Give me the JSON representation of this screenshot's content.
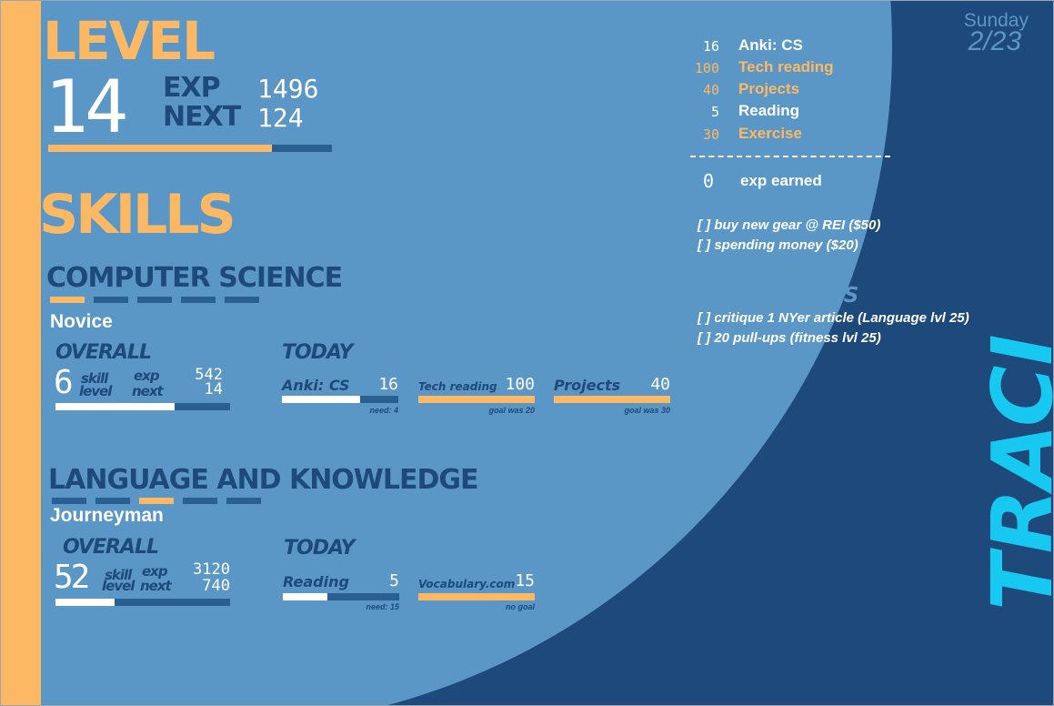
{
  "header": {
    "level_label": "LEVEL",
    "level_value": "14",
    "exp_label": "EXP",
    "exp_value": "1496",
    "next_label": "NEXT",
    "next_value": "124",
    "progress": 0.79
  },
  "skills": {
    "title": "SKILLS",
    "categories": [
      {
        "title": "COMPUTER SCIENCE",
        "rank": "Novice",
        "rank_step": 1,
        "overall_label": "OVERALL",
        "overall_value": "6",
        "skill_label": "skill",
        "level_label": "level",
        "exp_label": "exp",
        "next_label": "next",
        "exp_value": "542",
        "next_value": "14",
        "overall_progress": 0.68,
        "today_label": "TODAY",
        "items": [
          {
            "label": "Anki: CS",
            "value": "16",
            "note": "need: 4",
            "progress": 0.67,
            "fill": "white"
          },
          {
            "label": "Tech reading",
            "value": "100",
            "note": "goal was 20",
            "progress": 1.0,
            "fill": "orange"
          },
          {
            "label": "Projects",
            "value": "40",
            "note": "goal was 30",
            "progress": 1.0,
            "fill": "orange"
          }
        ]
      },
      {
        "title": "LANGUAGE AND KNOWLEDGE",
        "rank": "Journeyman",
        "rank_step": 3,
        "overall_label": "OVERALL",
        "overall_value": "52",
        "skill_label": "skill",
        "level_label": "level",
        "exp_label": "exp",
        "next_label": "next",
        "exp_value": "3120",
        "next_value": "740",
        "overall_progress": 0.34,
        "today_label": "TODAY",
        "items": [
          {
            "label": "Reading",
            "value": "5",
            "note": "need: 15",
            "progress": 0.38,
            "fill": "white"
          },
          {
            "label": "Vocabulary.com",
            "value": "15",
            "note": "no goal",
            "progress": 1.0,
            "fill": "orange"
          }
        ]
      }
    ]
  },
  "today_panel": {
    "title": "TODAY",
    "day": "Sunday",
    "date": "2/23",
    "rows": [
      {
        "value": "16",
        "label": "Anki: CS",
        "highlight": false
      },
      {
        "value": "100",
        "label": "Tech reading",
        "highlight": true
      },
      {
        "value": "40",
        "label": "Projects",
        "highlight": true
      },
      {
        "value": "5",
        "label": "Reading",
        "highlight": false
      },
      {
        "value": "30",
        "label": "Exercise",
        "highlight": true
      }
    ],
    "earned_value": "0",
    "earned_label": "exp earned"
  },
  "rewards": {
    "title": "REWARDS",
    "items": [
      "[ ]  buy new gear @ REI ($50)",
      "[ ]  spending money ($20)"
    ]
  },
  "boss_battles": {
    "title": "BOSS BATTLES",
    "items": [
      "[ ]  critique 1 NYer article (Language lvl 25)",
      "[ ]  20 pull-ups (fitness lvl 25)"
    ]
  },
  "side_banner": "TRACI",
  "colors": {
    "orange": "#fdb863",
    "navy": "#1d4a7a",
    "light_blue": "#5b97c6",
    "cyan": "#17c9f0",
    "bar": "#2a5f93"
  }
}
